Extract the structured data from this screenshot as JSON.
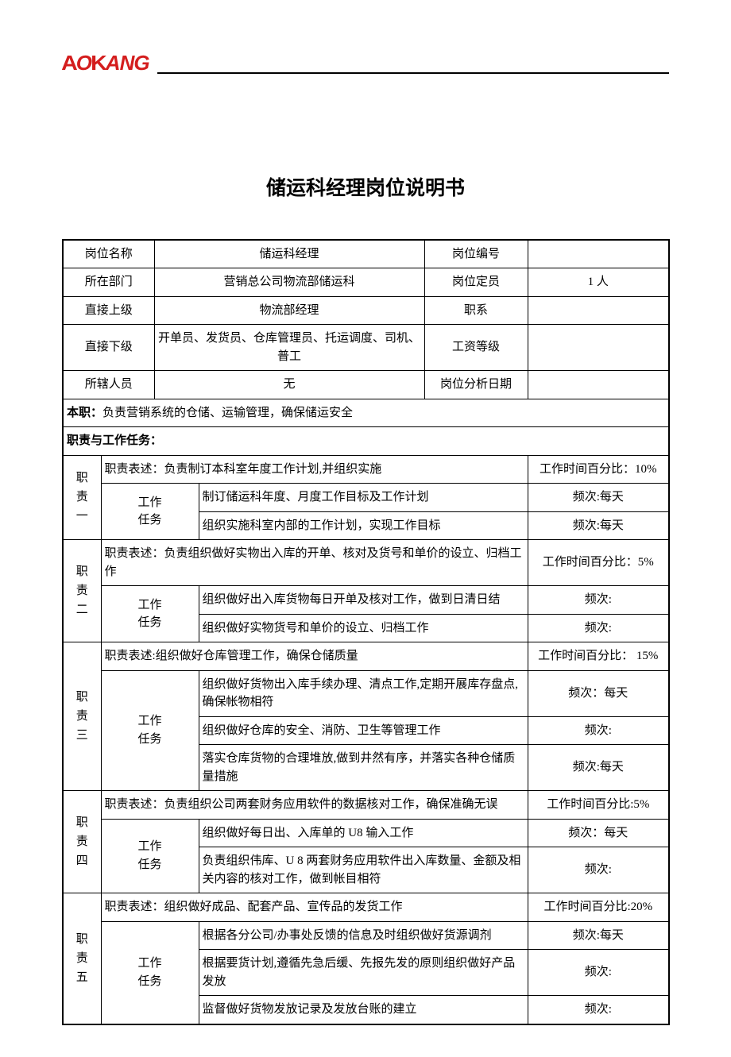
{
  "logo_text": "AOKANG",
  "title": "储运科经理岗位说明书",
  "info": {
    "r1": {
      "l": "岗位名称",
      "v": "储运科经理",
      "l2": "岗位编号",
      "v2": ""
    },
    "r2": {
      "l": "所在部门",
      "v": "营销总公司物流部储运科",
      "l2": "岗位定员",
      "v2": "1 人"
    },
    "r3": {
      "l": "直接上级",
      "v": "物流部经理",
      "l2": "职系",
      "v2": ""
    },
    "r4": {
      "l": "直接下级",
      "v": "开单员、发货员、仓库管理员、托运调度、司机、普工",
      "l2": "工资等级",
      "v2": ""
    },
    "r5": {
      "l": "所辖人员",
      "v": "无",
      "l2": "岗位分析日期",
      "v2": ""
    }
  },
  "benzhi_label": "本职：",
  "benzhi_text": "负责营销系统的仓储、运输管理，确保储运安全",
  "resp_section": "职责与工作任务：",
  "task_label": "工作任务",
  "resps": {
    "1": {
      "label": "职责一",
      "desc": "职责表述：负责制订本科室年度工作计划,并组织实施",
      "pct": "工作时间百分比：10%",
      "tasks": [
        {
          "t": "制订储运科年度、月度工作目标及工作计划",
          "f": "频次:每天"
        },
        {
          "t": "组织实施科室内部的工作计划，实现工作目标",
          "f": "频次:每天"
        }
      ]
    },
    "2": {
      "label": "职责二",
      "desc": "职责表述：负责组织做好实物出入库的开单、核对及货号和单价的设立、归档工作",
      "pct": "工作时间百分比：5%",
      "tasks": [
        {
          "t": "组织做好出入库货物每日开单及核对工作，做到日清日结",
          "f": "频次:"
        },
        {
          "t": "组织做好实物货号和单价的设立、归档工作",
          "f": "频次:"
        }
      ]
    },
    "3": {
      "label": "职责三",
      "desc": "职责表述:组织做好仓库管理工作，确保仓储质量",
      "pct": "工作时间百分比： 15%",
      "tasks": [
        {
          "t": "组织做好货物出入库手续办理、清点工作,定期开展库存盘点,确保帐物相符",
          "f": "频次：每天"
        },
        {
          "t": "组织做好仓库的安全、消防、卫生等管理工作",
          "f": "频次:"
        },
        {
          "t": "落实仓库货物的合理堆放,做到井然有序，并落实各种仓储质量措施",
          "f": "频次:每天"
        }
      ]
    },
    "4": {
      "label": "职责四",
      "desc": "职责表述：负责组织公司两套财务应用软件的数据核对工作，确保准确无误",
      "pct": "工作时间百分比:5%",
      "tasks": [
        {
          "t": "组织做好每日出、入库单的 U8 输入工作",
          "f": "频次：每天"
        },
        {
          "t": "负责组织伟库、U 8 两套财务应用软件出入库数量、金额及相关内容的核对工作，做到帐目相符",
          "f": "频次:"
        }
      ]
    },
    "5": {
      "label": "职责五",
      "desc": "职责表述：组织做好成品、配套产品、宣传品的发货工作",
      "pct": "工作时间百分比:20%",
      "tasks": [
        {
          "t": "根据各分公司/办事处反馈的信息及时组织做好货源调剂",
          "f": "频次:每天"
        },
        {
          "t": "根据要货计划,遵循先急后缓、先报先发的原则组织做好产品发放",
          "f": "频次:"
        },
        {
          "t": "监督做好货物发放记录及发放台账的建立",
          "f": "频次:"
        }
      ]
    }
  }
}
